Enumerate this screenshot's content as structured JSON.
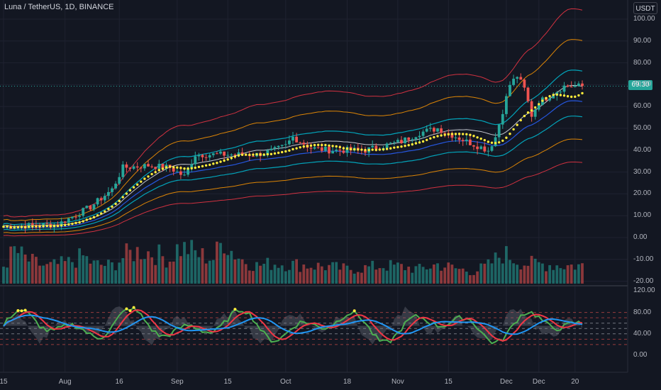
{
  "header": {
    "symbol_title": "Luna / TetherUS, 1D, BINANCE"
  },
  "price_scale": {
    "currency": "USDT",
    "current_price": "69.30",
    "current_value": 69.3
  },
  "main_axis": {
    "ticks": [
      {
        "label": "100.00",
        "value": 100
      },
      {
        "label": "90.00",
        "value": 90
      },
      {
        "label": "80.00",
        "value": 80
      },
      {
        "label": "70.00",
        "value": 70
      },
      {
        "label": "60.00",
        "value": 60
      },
      {
        "label": "50.00",
        "value": 50
      },
      {
        "label": "40.00",
        "value": 40
      },
      {
        "label": "30.00",
        "value": 30
      },
      {
        "label": "20.00",
        "value": 20
      },
      {
        "label": "10.00",
        "value": 10
      },
      {
        "label": "0.00",
        "value": 0
      },
      {
        "label": "-10.00",
        "value": -10
      },
      {
        "label": "-20.00",
        "value": -20
      }
    ]
  },
  "osc_axis": {
    "ticks": [
      {
        "label": "120.00",
        "value": 120
      },
      {
        "label": "80.00",
        "value": 80
      },
      {
        "label": "40.00",
        "value": 40
      },
      {
        "label": "0.00",
        "value": 0
      }
    ]
  },
  "time_axis": {
    "labels": [
      {
        "label": "15",
        "day": 0
      },
      {
        "label": "Aug",
        "day": 17
      },
      {
        "label": "16",
        "day": 32
      },
      {
        "label": "Sep",
        "day": 48
      },
      {
        "label": "15",
        "day": 62
      },
      {
        "label": "Oct",
        "day": 78
      },
      {
        "label": "18",
        "day": 95
      },
      {
        "label": "Nov",
        "day": 109
      },
      {
        "label": "15",
        "day": 123
      },
      {
        "label": "Dec",
        "day": 139
      },
      {
        "label": "Dec",
        "day": 148
      },
      {
        "label": "20",
        "day": 158
      }
    ]
  },
  "colors": {
    "up": "#26a69a",
    "down": "#ef5350",
    "background": "#131722",
    "grid": "#1f2230"
  },
  "chart_data": {
    "type": "candlestick",
    "x_unit": "days from start",
    "price_keypoints": [
      [
        0,
        5
      ],
      [
        15,
        6
      ],
      [
        24,
        14
      ],
      [
        30,
        22
      ],
      [
        33,
        32
      ],
      [
        40,
        33
      ],
      [
        46,
        32
      ],
      [
        50,
        28
      ],
      [
        53,
        38
      ],
      [
        60,
        38
      ],
      [
        64,
        38
      ],
      [
        70,
        38
      ],
      [
        75,
        40
      ],
      [
        78,
        42
      ],
      [
        80,
        46
      ],
      [
        85,
        41
      ],
      [
        90,
        40
      ],
      [
        100,
        40
      ],
      [
        110,
        44
      ],
      [
        115,
        48
      ],
      [
        120,
        50
      ],
      [
        124,
        47
      ],
      [
        128,
        44
      ],
      [
        131,
        42
      ],
      [
        134,
        40
      ],
      [
        136,
        46
      ],
      [
        138,
        58
      ],
      [
        140,
        70
      ],
      [
        142,
        74
      ],
      [
        144,
        68
      ],
      [
        146,
        56
      ],
      [
        148,
        62
      ],
      [
        152,
        66
      ],
      [
        155,
        69.3
      ]
    ],
    "volume_keypoints": [
      [
        0,
        30
      ],
      [
        3,
        55
      ],
      [
        7,
        38
      ],
      [
        12,
        28
      ],
      [
        18,
        35
      ],
      [
        22,
        45
      ],
      [
        25,
        32
      ],
      [
        30,
        30
      ],
      [
        34,
        48
      ],
      [
        38,
        55
      ],
      [
        42,
        50
      ],
      [
        46,
        40
      ],
      [
        48,
        58
      ],
      [
        51,
        58
      ],
      [
        54,
        48
      ],
      [
        58,
        42
      ],
      [
        61,
        75
      ],
      [
        63,
        55
      ],
      [
        66,
        40
      ],
      [
        70,
        30
      ],
      [
        75,
        34
      ],
      [
        80,
        32
      ],
      [
        85,
        30
      ],
      [
        90,
        28
      ],
      [
        95,
        24
      ],
      [
        100,
        26
      ],
      [
        105,
        30
      ],
      [
        110,
        28
      ],
      [
        115,
        24
      ],
      [
        120,
        32
      ],
      [
        125,
        25
      ],
      [
        130,
        20
      ],
      [
        134,
        30
      ],
      [
        138,
        50
      ],
      [
        140,
        45
      ],
      [
        144,
        34
      ],
      [
        150,
        32
      ],
      [
        155,
        30
      ]
    ],
    "oscillator": {
      "ylim": [
        0,
        120
      ],
      "levels": [
        80,
        70,
        60,
        50,
        40,
        30,
        20
      ]
    }
  }
}
